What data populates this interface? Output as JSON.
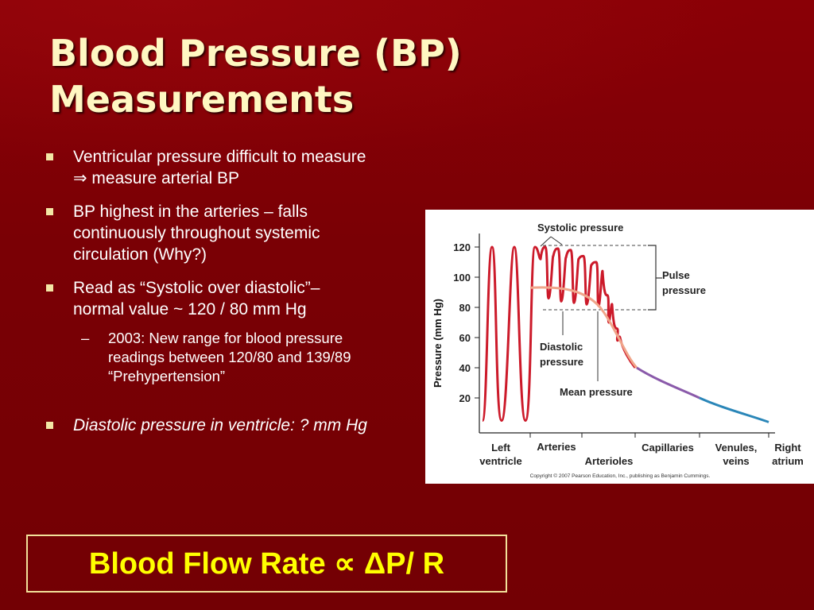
{
  "slide": {
    "title_line1": "Blood Pressure (BP)",
    "title_line2": "Measurements"
  },
  "bullets": [
    {
      "line1": "Ventricular pressure difficult to measure",
      "line2": "⇒ measure arterial BP"
    },
    {
      "line1": "BP highest in the arteries – falls",
      "line2": "continuously throughout systemic",
      "line3": "circulation (Why?)"
    },
    {
      "line1": "Read as “Systolic over diastolic”–",
      "line2": "normal value ~ 120 / 80 mm Hg"
    },
    {
      "text": "Diastolic pressure in ventricle: ? mm Hg"
    }
  ],
  "sub_bullet": {
    "dash": "–",
    "line1": "2003: New range for blood pressure",
    "line2": "readings between 120/80 and 139/89",
    "line3": "“Prehypertension”"
  },
  "formula": "Blood Flow Rate  ∝ ΔP/ R",
  "chart_data": {
    "type": "line",
    "ylabel": "Pressure (mm Hg)",
    "yticks": [
      20,
      40,
      60,
      80,
      100,
      120
    ],
    "ylim": [
      0,
      130
    ],
    "regions": [
      "Left ventricle",
      "Arteries",
      "Arterioles",
      "Capillaries",
      "Venules, veins",
      "Right atrium"
    ],
    "annotations": [
      "Systolic pressure",
      "Pulse pressure",
      "Diastolic pressure",
      "Mean pressure"
    ],
    "labels": {
      "ylabel": "Pressure (mm Hg)",
      "systolic": "Systolic pressure",
      "pulse1": "Pulse",
      "pulse2": "pressure",
      "diastolic1": "Diastolic",
      "diastolic2": "pressure",
      "mean": "Mean pressure",
      "lv1": "Left",
      "lv2": "ventricle",
      "arteries": "Arteries",
      "arterioles": "Arterioles",
      "capillaries": "Capillaries",
      "venules1": "Venules,",
      "venules2": "veins",
      "ra1": "Right",
      "ra2": "atrium",
      "copyright": "Copyright © 2007 Pearson Education, Inc., publishing as Benjamin Cummings."
    },
    "ventricle_pressure": {
      "systolic": 120,
      "diastolic": 5
    },
    "arterial_pressure": {
      "systolic": 120,
      "diastolic": 80
    },
    "mean_pressure_path": [
      [
        0,
        93
      ],
      [
        1,
        92
      ],
      [
        2,
        88
      ],
      [
        3,
        75
      ],
      [
        4,
        55
      ],
      [
        5,
        40
      ],
      [
        6,
        32
      ],
      [
        7,
        22
      ],
      [
        8,
        15
      ],
      [
        9,
        5
      ]
    ],
    "colors": {
      "pulse": "#cc1a2a",
      "mean": "#f0a58a",
      "capillary": "#8a5aaa",
      "venous": "#2a86b8"
    }
  }
}
